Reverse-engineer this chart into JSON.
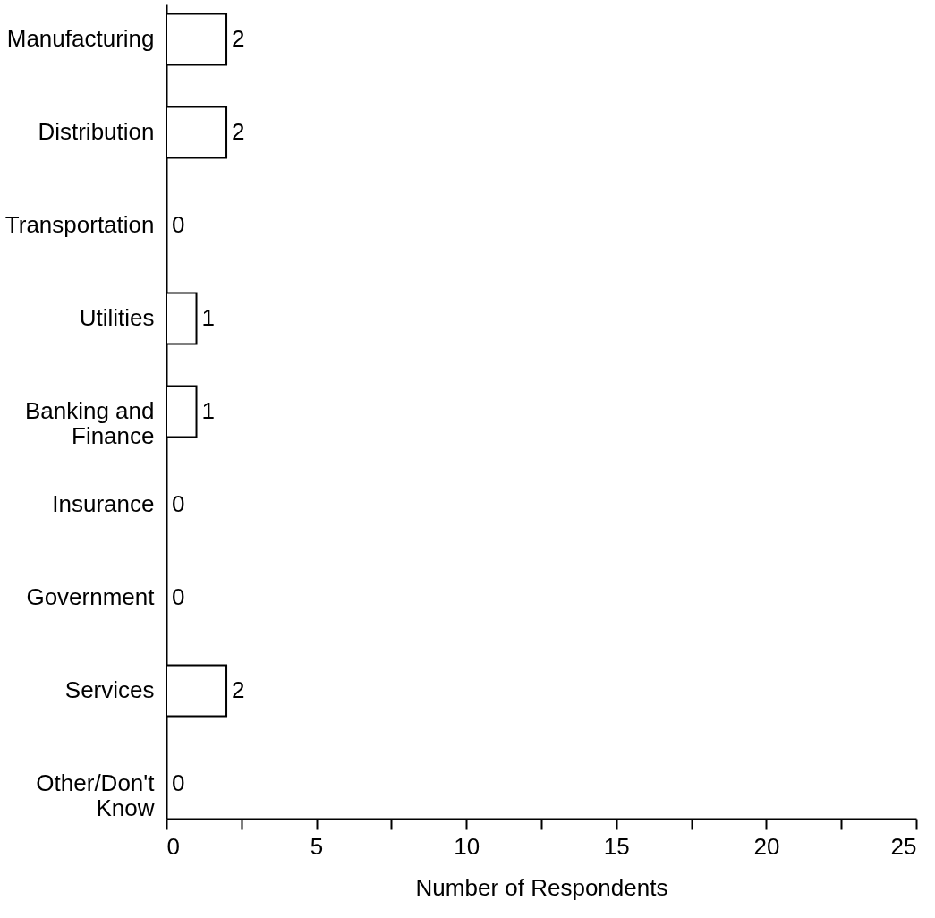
{
  "chart_data": {
    "type": "bar",
    "orientation": "horizontal",
    "xlabel": "Number of Respondents",
    "categories": [
      "Manufacturing",
      "Distribution",
      "Transportation",
      "Utilities",
      "Banking and Finance",
      "Insurance",
      "Government",
      "Services",
      "Other/Don't Know"
    ],
    "values": [
      2,
      2,
      0,
      1,
      1,
      0,
      0,
      2,
      0
    ],
    "color": "#ffffff",
    "data_labels": true,
    "grid": false,
    "xlim": [
      0,
      25
    ],
    "xticks": [
      0,
      {
        "value": 2.5,
        "label": null
      },
      5,
      {
        "value": 7.5,
        "label": null
      },
      10,
      {
        "value": 12.5,
        "label": null
      },
      15,
      {
        "value": 17.5,
        "label": null
      },
      20,
      {
        "value": 22.5,
        "label": null
      },
      25
    ]
  }
}
